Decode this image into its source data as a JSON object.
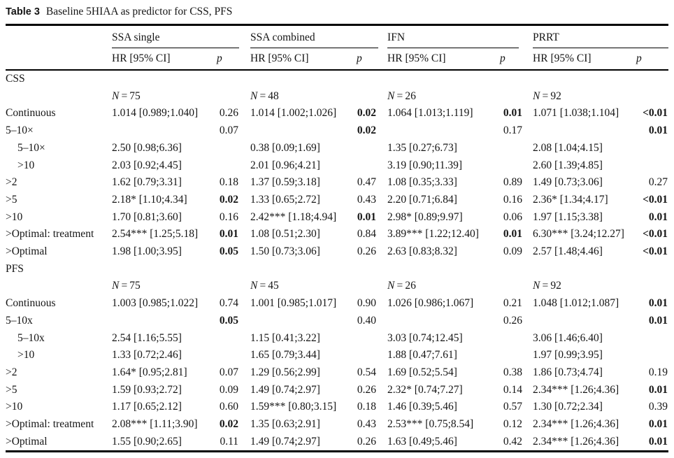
{
  "title": {
    "label": "Table 3",
    "caption": "Baseline 5HIAA as predictor for CSS, PFS"
  },
  "table": {
    "groups": [
      "SSA single",
      "SSA combined",
      "IFN",
      "PRRT"
    ],
    "subheader": {
      "hr": "HR [95% CI]",
      "p": "p"
    },
    "sections": [
      {
        "name": "CSS",
        "n_label": "N",
        "n_eq": "=",
        "n_values": [
          "75",
          "48",
          "26",
          "92"
        ],
        "rows": [
          {
            "label": "Continuous",
            "indent": false,
            "cells": [
              {
                "hr": "1.014 [0.989;1.040]",
                "p": "0.26",
                "p_bold": false
              },
              {
                "hr": "1.014 [1.002;1.026]",
                "p": "0.02",
                "p_bold": true
              },
              {
                "hr": "1.064 [1.013;1.119]",
                "p": "0.01",
                "p_bold": true
              },
              {
                "hr": "1.071 [1.038;1.104]",
                "p": "<0.01",
                "p_bold": true
              }
            ]
          },
          {
            "label": "5–10×",
            "indent": false,
            "cells": [
              {
                "hr": "",
                "p": "0.07",
                "p_bold": false
              },
              {
                "hr": "",
                "p": "0.02",
                "p_bold": true
              },
              {
                "hr": "",
                "p": "0.17",
                "p_bold": false
              },
              {
                "hr": "",
                "p": "0.01",
                "p_bold": true
              }
            ]
          },
          {
            "label": "5–10×",
            "indent": true,
            "cells": [
              {
                "hr": "2.50 [0.98;6.36]",
                "p": "",
                "p_bold": false
              },
              {
                "hr": "0.38 [0.09;1.69]",
                "p": "",
                "p_bold": false
              },
              {
                "hr": "1.35 [0.27;6.73]",
                "p": "",
                "p_bold": false
              },
              {
                "hr": "2.08 [1.04;4.15]",
                "p": "",
                "p_bold": false
              }
            ]
          },
          {
            "label": ">10",
            "indent": true,
            "cells": [
              {
                "hr": "2.03 [0.92;4.45]",
                "p": "",
                "p_bold": false
              },
              {
                "hr": "2.01 [0.96;4.21]",
                "p": "",
                "p_bold": false
              },
              {
                "hr": "3.19 [0.90;11.39]",
                "p": "",
                "p_bold": false
              },
              {
                "hr": "2.60 [1.39;4.85]",
                "p": "",
                "p_bold": false
              }
            ]
          },
          {
            "label": ">2",
            "indent": false,
            "cells": [
              {
                "hr": "1.62 [0.79;3.31]",
                "p": "0.18",
                "p_bold": false
              },
              {
                "hr": "1.37 [0.59;3.18]",
                "p": "0.47",
                "p_bold": false
              },
              {
                "hr": "1.08 [0.35;3.33]",
                "p": "0.89",
                "p_bold": false
              },
              {
                "hr": "1.49 [0.73;3.06]",
                "p": "0.27",
                "p_bold": false
              }
            ]
          },
          {
            "label": ">5",
            "indent": false,
            "cells": [
              {
                "hr": "2.18* [1.10;4.34]",
                "p": "0.02",
                "p_bold": true
              },
              {
                "hr": "1.33 [0.65;2.72]",
                "p": "0.43",
                "p_bold": false
              },
              {
                "hr": "2.20 [0.71;6.84]",
                "p": "0.16",
                "p_bold": false
              },
              {
                "hr": "2.36* [1.34;4.17]",
                "p": "<0.01",
                "p_bold": true
              }
            ]
          },
          {
            "label": ">10",
            "indent": false,
            "cells": [
              {
                "hr": "1.70 [0.81;3.60]",
                "p": "0.16",
                "p_bold": false
              },
              {
                "hr": "2.42*** [1.18;4.94]",
                "p": "0.01",
                "p_bold": true
              },
              {
                "hr": "2.98* [0.89;9.97]",
                "p": "0.06",
                "p_bold": false
              },
              {
                "hr": "1.97 [1.15;3.38]",
                "p": "0.01",
                "p_bold": true
              }
            ]
          },
          {
            "label": ">Optimal: treatment",
            "indent": false,
            "cells": [
              {
                "hr": "2.54*** [1.25;5.18]",
                "p": "0.01",
                "p_bold": true
              },
              {
                "hr": "1.08 [0.51;2.30]",
                "p": "0.84",
                "p_bold": false
              },
              {
                "hr": "3.89*** [1.22;12.40]",
                "p": "0.01",
                "p_bold": true
              },
              {
                "hr": "6.30*** [3.24;12.27]",
                "p": "<0.01",
                "p_bold": true
              }
            ]
          },
          {
            "label": ">Optimal",
            "indent": false,
            "cells": [
              {
                "hr": "1.98 [1.00;3.95]",
                "p": "0.05",
                "p_bold": true
              },
              {
                "hr": "1.50 [0.73;3.06]",
                "p": "0.26",
                "p_bold": false
              },
              {
                "hr": "2.63 [0.83;8.32]",
                "p": "0.09",
                "p_bold": false
              },
              {
                "hr": "2.57 [1.48;4.46]",
                "p": "<0.01",
                "p_bold": true
              }
            ]
          }
        ]
      },
      {
        "name": "PFS",
        "n_label": "N",
        "n_eq": "=",
        "n_values": [
          "75",
          "45",
          "26",
          "92"
        ],
        "rows": [
          {
            "label": "Continuous",
            "indent": false,
            "cells": [
              {
                "hr": "1.003 [0.985;1.022]",
                "p": "0.74",
                "p_bold": false
              },
              {
                "hr": "1.001 [0.985;1.017]",
                "p": "0.90",
                "p_bold": false
              },
              {
                "hr": "1.026 [0.986;1.067]",
                "p": "0.21",
                "p_bold": false
              },
              {
                "hr": "1.048 [1.012;1.087]",
                "p": "0.01",
                "p_bold": true
              }
            ]
          },
          {
            "label": "5–10x",
            "indent": false,
            "cells": [
              {
                "hr": "",
                "p": "0.05",
                "p_bold": true
              },
              {
                "hr": "",
                "p": "0.40",
                "p_bold": false
              },
              {
                "hr": "",
                "p": "0.26",
                "p_bold": false
              },
              {
                "hr": "",
                "p": "0.01",
                "p_bold": true
              }
            ]
          },
          {
            "label": "5–10x",
            "indent": true,
            "cells": [
              {
                "hr": "2.54 [1.16;5.55]",
                "p": "",
                "p_bold": false
              },
              {
                "hr": "1.15 [0.41;3.22]",
                "p": "",
                "p_bold": false
              },
              {
                "hr": "3.03 [0.74;12.45]",
                "p": "",
                "p_bold": false
              },
              {
                "hr": "3.06 [1.46;6.40]",
                "p": "",
                "p_bold": false
              }
            ]
          },
          {
            "label": ">10",
            "indent": true,
            "cells": [
              {
                "hr": "1.33 [0.72;2.46]",
                "p": "",
                "p_bold": false
              },
              {
                "hr": "1.65 [0.79;3.44]",
                "p": "",
                "p_bold": false
              },
              {
                "hr": "1.88 [0.47;7.61]",
                "p": "",
                "p_bold": false
              },
              {
                "hr": "1.97 [0.99;3.95]",
                "p": "",
                "p_bold": false
              }
            ]
          },
          {
            "label": ">2",
            "indent": false,
            "cells": [
              {
                "hr": "1.64* [0.95;2.81]",
                "p": "0.07",
                "p_bold": false
              },
              {
                "hr": "1.29 [0.56;2.99]",
                "p": "0.54",
                "p_bold": false
              },
              {
                "hr": "1.69 [0.52;5.54]",
                "p": "0.38",
                "p_bold": false
              },
              {
                "hr": "1.86 [0.73;4.74]",
                "p": "0.19",
                "p_bold": false
              }
            ]
          },
          {
            "label": ">5",
            "indent": false,
            "cells": [
              {
                "hr": "1.59 [0.93;2.72]",
                "p": "0.09",
                "p_bold": false
              },
              {
                "hr": "1.49 [0.74;2.97]",
                "p": "0.26",
                "p_bold": false
              },
              {
                "hr": "2.32* [0.74;7.27]",
                "p": "0.14",
                "p_bold": false
              },
              {
                "hr": "2.34*** [1.26;4.36]",
                "p": "0.01",
                "p_bold": true
              }
            ]
          },
          {
            "label": ">10",
            "indent": false,
            "cells": [
              {
                "hr": "1.17 [0.65;2.12]",
                "p": "0.60",
                "p_bold": false
              },
              {
                "hr": "1.59*** [0.80;3.15]",
                "p": "0.18",
                "p_bold": false
              },
              {
                "hr": "1.46 [0.39;5.46]",
                "p": "0.57",
                "p_bold": false
              },
              {
                "hr": "1.30 [0.72;2.34]",
                "p": "0.39",
                "p_bold": false
              }
            ]
          },
          {
            "label": ">Optimal: treatment",
            "indent": false,
            "cells": [
              {
                "hr": "2.08*** [1.11;3.90]",
                "p": "0.02",
                "p_bold": true
              },
              {
                "hr": "1.35 [0.63;2.91]",
                "p": "0.43",
                "p_bold": false
              },
              {
                "hr": "2.53*** [0.75;8.54]",
                "p": "0.12",
                "p_bold": false
              },
              {
                "hr": "2.34*** [1.26;4.36]",
                "p": "0.01",
                "p_bold": true
              }
            ]
          },
          {
            "label": ">Optimal",
            "indent": false,
            "cells": [
              {
                "hr": "1.55 [0.90;2.65]",
                "p": "0.11",
                "p_bold": false
              },
              {
                "hr": "1.49 [0.74;2.97]",
                "p": "0.26",
                "p_bold": false
              },
              {
                "hr": "1.63 [0.49;5.46]",
                "p": "0.42",
                "p_bold": false
              },
              {
                "hr": "2.34*** [1.26;4.36]",
                "p": "0.01",
                "p_bold": true
              }
            ]
          }
        ]
      }
    ]
  }
}
